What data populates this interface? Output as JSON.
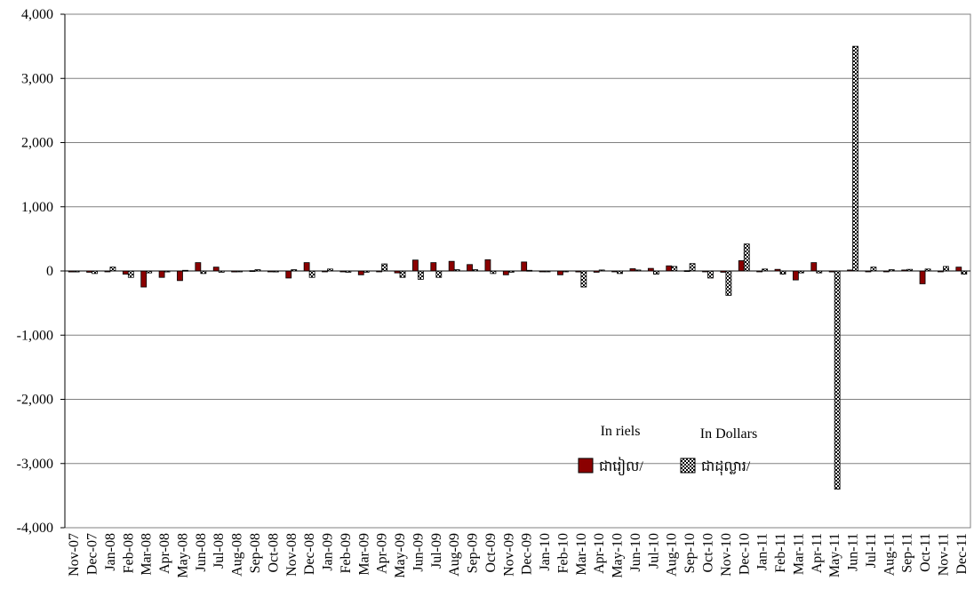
{
  "chart_data": {
    "type": "bar",
    "title": "",
    "xlabel": "",
    "ylabel": "",
    "ylim": [
      -4000,
      4000
    ],
    "yticks": [
      -4000,
      -3000,
      -2000,
      -1000,
      0,
      1000,
      2000,
      3000,
      4000
    ],
    "ytick_labels": [
      "-4,000",
      "-3,000",
      "-2,000",
      "-1,000",
      "0",
      "1,000",
      "2,000",
      "3,000",
      "4,000"
    ],
    "grid": true,
    "legend_position": "lower-right",
    "categories": [
      "Nov-07",
      "Dec-07",
      "Jan-08",
      "Feb-08",
      "Mar-08",
      "Apr-08",
      "May-08",
      "Jun-08",
      "Jul-08",
      "Aug-08",
      "Sep-08",
      "Oct-08",
      "Nov-08",
      "Dec-08",
      "Jan-09",
      "Feb-09",
      "Mar-09",
      "Apr-09",
      "May-09",
      "Jun-09",
      "Jul-09",
      "Aug-09",
      "Sep-09",
      "Oct-09",
      "Nov-09",
      "Dec-09",
      "Jan-10",
      "Feb-10",
      "Mar-10",
      "Apr-10",
      "May-10",
      "Jun-10",
      "Jul-10",
      "Aug-10",
      "Sep-10",
      "Oct-10",
      "Nov-10",
      "Dec-10",
      "Jan-11",
      "Feb-11",
      "Mar-11",
      "Apr-11",
      "May-11",
      "Jun-11",
      "Jul-11",
      "Aug-11",
      "Sep-11",
      "Oct-11",
      "Nov-11",
      "Dec-11"
    ],
    "series": [
      {
        "name": "ជារៀល/",
        "legend_caption": "In riels",
        "color": "#8b0000",
        "pattern": "solid",
        "values": [
          -15,
          -20,
          -10,
          -50,
          -250,
          -100,
          -150,
          130,
          60,
          -15,
          5,
          -10,
          -110,
          130,
          -5,
          -10,
          -60,
          -5,
          -30,
          170,
          130,
          150,
          100,
          175,
          -60,
          140,
          -10,
          -60,
          -15,
          -20,
          -10,
          35,
          40,
          80,
          5,
          -10,
          -20,
          160,
          -10,
          25,
          -140,
          130,
          -15,
          15,
          -10,
          -5,
          15,
          -200,
          -5,
          60
        ]
      },
      {
        "name": "ជាដុល្លារ/",
        "legend_caption": "In Dollars",
        "color": "#000000",
        "pattern": "dotted",
        "values": [
          -15,
          -40,
          60,
          -100,
          -30,
          -15,
          10,
          -40,
          -20,
          -10,
          20,
          -15,
          20,
          -100,
          30,
          -20,
          -20,
          110,
          -100,
          -130,
          -100,
          20,
          20,
          -40,
          -20,
          10,
          -10,
          -10,
          -250,
          15,
          -40,
          15,
          -50,
          70,
          115,
          -110,
          -380,
          420,
          30,
          -50,
          -30,
          -30,
          -3400,
          3500,
          60,
          20,
          25,
          30,
          70,
          -50
        ]
      }
    ]
  }
}
